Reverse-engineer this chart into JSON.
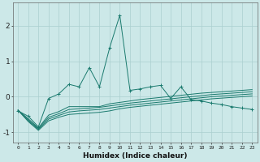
{
  "x": [
    0,
    1,
    2,
    3,
    4,
    5,
    6,
    7,
    8,
    9,
    10,
    11,
    12,
    13,
    14,
    15,
    16,
    17,
    18,
    19,
    20,
    21,
    22,
    23
  ],
  "line1": [
    -0.4,
    -0.55,
    -0.85,
    -0.05,
    0.08,
    0.35,
    0.28,
    0.82,
    0.28,
    1.38,
    2.3,
    0.18,
    0.22,
    0.28,
    0.32,
    -0.05,
    0.28,
    -0.08,
    -0.12,
    -0.18,
    -0.22,
    -0.28,
    -0.32,
    -0.36
  ],
  "line2": [
    -0.38,
    -0.62,
    -0.88,
    -0.52,
    -0.42,
    -0.28,
    -0.28,
    -0.28,
    -0.28,
    -0.2,
    -0.16,
    -0.12,
    -0.08,
    -0.05,
    -0.02,
    0.01,
    0.04,
    0.07,
    0.1,
    0.12,
    0.14,
    0.16,
    0.18,
    0.2
  ],
  "line3": [
    -0.38,
    -0.65,
    -0.9,
    -0.58,
    -0.48,
    -0.36,
    -0.34,
    -0.32,
    -0.3,
    -0.26,
    -0.22,
    -0.18,
    -0.15,
    -0.12,
    -0.09,
    -0.06,
    -0.03,
    0.0,
    0.03,
    0.06,
    0.08,
    0.1,
    0.12,
    0.14
  ],
  "line4": [
    -0.38,
    -0.68,
    -0.92,
    -0.63,
    -0.53,
    -0.43,
    -0.4,
    -0.38,
    -0.36,
    -0.32,
    -0.28,
    -0.24,
    -0.21,
    -0.18,
    -0.15,
    -0.12,
    -0.09,
    -0.06,
    -0.03,
    0.0,
    0.02,
    0.04,
    0.06,
    0.08
  ],
  "line5": [
    -0.38,
    -0.7,
    -0.95,
    -0.68,
    -0.58,
    -0.5,
    -0.48,
    -0.46,
    -0.44,
    -0.4,
    -0.34,
    -0.3,
    -0.27,
    -0.24,
    -0.21,
    -0.18,
    -0.15,
    -0.12,
    -0.09,
    -0.06,
    -0.04,
    -0.02,
    0.0,
    0.02
  ],
  "color": "#1a7a6e",
  "bg_color": "#cce8e8",
  "grid_color": "#aacfcf",
  "xlabel": "Humidex (Indice chaleur)",
  "yticks": [
    -1,
    0,
    1,
    2
  ],
  "xtick_labels": [
    "0",
    "1",
    "2",
    "3",
    "4",
    "5",
    "6",
    "7",
    "8",
    "9",
    "10",
    "11",
    "12",
    "13",
    "14",
    "15",
    "16",
    "17",
    "18",
    "19",
    "20",
    "21",
    "22",
    "23"
  ],
  "ylim": [
    -1.3,
    2.65
  ],
  "xlim": [
    -0.5,
    23.5
  ]
}
